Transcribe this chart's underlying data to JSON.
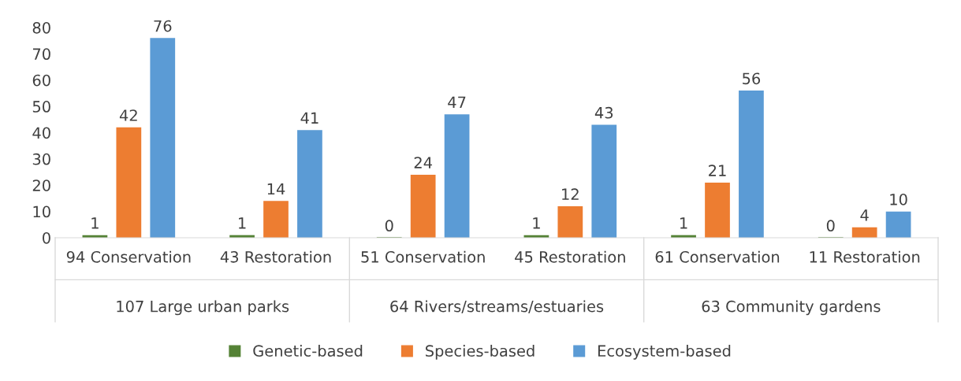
{
  "chart_data": {
    "type": "bar",
    "categories": [
      "94 Conservation",
      "43 Restoration",
      "51 Conservation",
      "45 Restoration",
      "61 Conservation",
      "11 Restoration"
    ],
    "annotations": [
      "107 Large urban parks",
      "64 Rivers/streams/estuaries",
      "63 Community gardens"
    ],
    "series": [
      {
        "name": "Genetic-based",
        "color": "#548235",
        "values": [
          1,
          1,
          0,
          1,
          1,
          0
        ]
      },
      {
        "name": "Species-based",
        "color": "#ed7d31",
        "values": [
          42,
          14,
          24,
          12,
          21,
          4
        ]
      },
      {
        "name": "Ecosystem-based",
        "color": "#5b9bd5",
        "values": [
          76,
          41,
          47,
          43,
          56,
          10
        ]
      }
    ],
    "ylim": [
      0,
      80
    ],
    "yticks": [
      0,
      10,
      20,
      30,
      40,
      50,
      60,
      70,
      80
    ],
    "data_labels": true,
    "grid": false,
    "legend": "bottom"
  }
}
